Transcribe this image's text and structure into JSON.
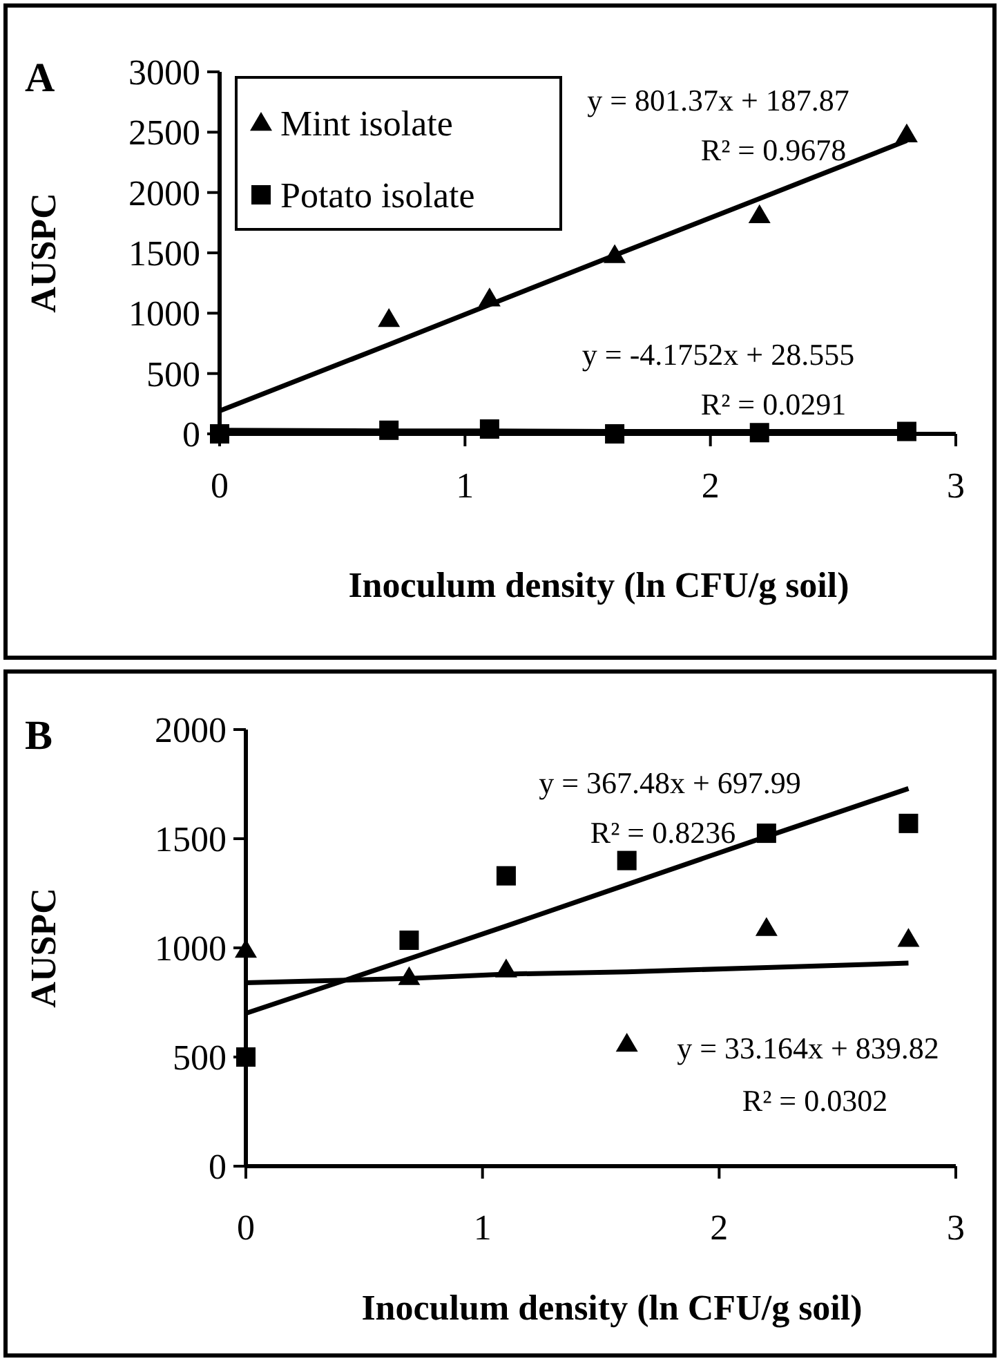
{
  "chart_data": [
    {
      "type": "scatter",
      "title": "A",
      "xlabel": "Inoculum density (ln CFU/g soil)",
      "ylabel": "AUSPC",
      "xlim": [
        0,
        3
      ],
      "ylim": [
        0,
        3000
      ],
      "xticks": [
        0,
        1,
        2,
        3
      ],
      "yticks": [
        0,
        500,
        1000,
        1500,
        2000,
        2500,
        3000
      ],
      "grid": false,
      "legend": "top left",
      "x": [
        0,
        0.69,
        1.1,
        1.61,
        2.2,
        2.8
      ],
      "series": [
        {
          "name": "Mint isolate",
          "color": "#000000",
          "marker": "triangle",
          "values": [
            null,
            950,
            1120,
            1480,
            1810,
            2480
          ]
        },
        {
          "name": "Potato isolate",
          "color": "#000000",
          "marker": "square",
          "values": [
            0,
            30,
            40,
            0,
            10,
            20
          ]
        },
        {
          "type": "line",
          "color": "#000000",
          "values": [
            190,
            740,
            1070,
            1480,
            1950,
            2430
          ]
        },
        {
          "type": "line",
          "color": "#000000",
          "values": [
            30,
            25,
            25,
            20,
            20,
            20
          ]
        }
      ],
      "annotations": [
        "y = 801.37x + 187.87",
        "R² = 0.9678",
        "y = -4.1752x + 28.555",
        "R² = 0.0291"
      ]
    },
    {
      "type": "scatter",
      "title": "B",
      "xlabel": "Inoculum density (ln CFU/g soil)",
      "ylabel": "AUSPC",
      "xlim": [
        0,
        3
      ],
      "ylim": [
        0,
        2000
      ],
      "xticks": [
        0,
        1,
        2,
        3
      ],
      "yticks": [
        0,
        500,
        1000,
        1500,
        2000
      ],
      "grid": false,
      "x": [
        0,
        0.69,
        1.1,
        1.61,
        2.2,
        2.8
      ],
      "series": [
        {
          "color": "#000000",
          "marker": "triangle",
          "values": [
            990,
            865,
            900,
            560,
            1090,
            1040
          ]
        },
        {
          "color": "#000000",
          "marker": "square",
          "values": [
            500,
            1035,
            1330,
            1400,
            1525,
            1570
          ]
        },
        {
          "type": "line",
          "color": "#000000",
          "values": [
            700,
            950,
            1100,
            1290,
            1510,
            1730
          ]
        },
        {
          "type": "line",
          "color": "#000000",
          "values": [
            840,
            860,
            880,
            890,
            910,
            930
          ]
        }
      ],
      "annotations": [
        "y = 367.48x + 697.99",
        "R² = 0.8236",
        "y = 33.164x + 839.82",
        "R² = 0.0302"
      ]
    }
  ]
}
